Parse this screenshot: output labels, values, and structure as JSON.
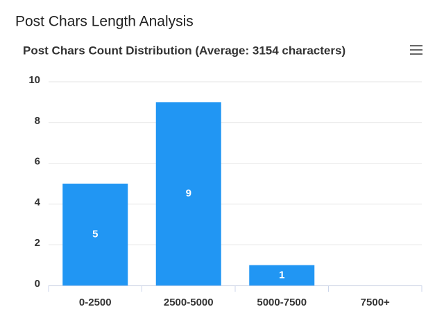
{
  "heading": "Post Chars Length Analysis",
  "chart_data": {
    "type": "bar",
    "title": "Post Chars Count Distribution (Average: 3154 characters)",
    "categories": [
      "0-2500",
      "2500-5000",
      "5000-7500",
      "7500+"
    ],
    "values": [
      5,
      9,
      1,
      0
    ],
    "color": "#2196f3",
    "ylim": [
      0,
      10
    ],
    "yticks": [
      0,
      2,
      4,
      6,
      8,
      10
    ],
    "grid": true,
    "data_labels": true
  }
}
